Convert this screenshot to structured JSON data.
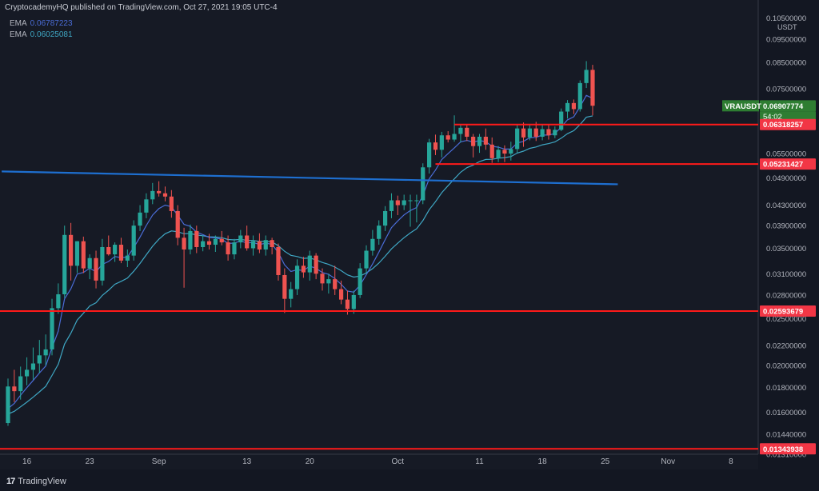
{
  "header": {
    "publish_text": "CryptocademyHQ published on TradingView.com, Oct 27, 2021 19:05 UTC-4"
  },
  "indicators": [
    {
      "label": "EMA",
      "value": "0.06787223",
      "color": "#4a6cd6"
    },
    {
      "label": "EMA",
      "value": "0.06025081",
      "color": "#3fa7c4"
    }
  ],
  "symbol": "VRAUSDT",
  "last_price": "0.06907774",
  "countdown": "54:02",
  "currency": "USDT",
  "footer": {
    "brand": "TradingView"
  },
  "chart_data": {
    "type": "candlestick",
    "y_axis": {
      "scale": "log",
      "range": [
        0.0131,
        0.1085
      ],
      "tick_labels": [
        "0.10500000",
        "0.09500000",
        "0.08500000",
        "0.07500000",
        "0.05500000",
        "0.04900000",
        "0.04300000",
        "0.03900000",
        "0.03500000",
        "0.03100000",
        "0.02800000",
        "0.02500000",
        "0.02200000",
        "0.02000000",
        "0.01800000",
        "0.01600000",
        "0.01440000",
        "0.01310000"
      ]
    },
    "x_axis": {
      "tick_labels": [
        "16",
        "23",
        "Sep",
        "13",
        "20",
        "Oct",
        "11",
        "18",
        "25",
        "Nov",
        "8"
      ]
    },
    "price_labels": [
      {
        "value": "0.06907774",
        "color": "#2e7d32"
      },
      {
        "value": "0.06318257",
        "color": "#f23645"
      },
      {
        "value": "0.05231427",
        "color": "#f23645"
      },
      {
        "value": "0.02593679",
        "color": "#f23645"
      },
      {
        "value": "0.01343938",
        "color": "#f23645"
      }
    ],
    "horizontal_levels": [
      {
        "value": 0.06318257,
        "color": "#ff1a1a"
      },
      {
        "value": 0.05231427,
        "color": "#ff1a1a"
      },
      {
        "value": 0.02593679,
        "color": "#ff1a1a"
      },
      {
        "value": 0.01343938,
        "color": "#ff1a1a"
      }
    ],
    "trendline": {
      "color": "#1e6fd0",
      "start": {
        "candle": -1,
        "price": 0.0505
      },
      "end": {
        "candle": 97,
        "price": 0.0475
      }
    },
    "candles": [
      {
        "o": 0.0152,
        "h": 0.0188,
        "l": 0.015,
        "c": 0.0181
      },
      {
        "o": 0.0181,
        "h": 0.0196,
        "l": 0.0168,
        "c": 0.0177
      },
      {
        "o": 0.0177,
        "h": 0.0199,
        "l": 0.017,
        "c": 0.019
      },
      {
        "o": 0.019,
        "h": 0.0208,
        "l": 0.0182,
        "c": 0.0196
      },
      {
        "o": 0.0196,
        "h": 0.0218,
        "l": 0.0187,
        "c": 0.0202
      },
      {
        "o": 0.0202,
        "h": 0.0226,
        "l": 0.0193,
        "c": 0.021
      },
      {
        "o": 0.021,
        "h": 0.0232,
        "l": 0.02,
        "c": 0.0216
      },
      {
        "o": 0.0216,
        "h": 0.0275,
        "l": 0.021,
        "c": 0.0263
      },
      {
        "o": 0.0263,
        "h": 0.0296,
        "l": 0.0256,
        "c": 0.0281
      },
      {
        "o": 0.0281,
        "h": 0.039,
        "l": 0.0276,
        "c": 0.0373
      },
      {
        "o": 0.0373,
        "h": 0.0395,
        "l": 0.03,
        "c": 0.0322
      },
      {
        "o": 0.0322,
        "h": 0.0362,
        "l": 0.0311,
        "c": 0.0362
      },
      {
        "o": 0.0362,
        "h": 0.037,
        "l": 0.0311,
        "c": 0.0318
      },
      {
        "o": 0.0318,
        "h": 0.034,
        "l": 0.0302,
        "c": 0.0334
      },
      {
        "o": 0.0334,
        "h": 0.0346,
        "l": 0.0289,
        "c": 0.03
      },
      {
        "o": 0.03,
        "h": 0.0366,
        "l": 0.0293,
        "c": 0.0352
      },
      {
        "o": 0.0352,
        "h": 0.0372,
        "l": 0.0338,
        "c": 0.034
      },
      {
        "o": 0.034,
        "h": 0.036,
        "l": 0.0328,
        "c": 0.0356
      },
      {
        "o": 0.0356,
        "h": 0.0368,
        "l": 0.0326,
        "c": 0.033
      },
      {
        "o": 0.033,
        "h": 0.0348,
        "l": 0.032,
        "c": 0.0338
      },
      {
        "o": 0.0338,
        "h": 0.04,
        "l": 0.033,
        "c": 0.039
      },
      {
        "o": 0.039,
        "h": 0.043,
        "l": 0.038,
        "c": 0.0415
      },
      {
        "o": 0.0415,
        "h": 0.0455,
        "l": 0.0404,
        "c": 0.0442
      },
      {
        "o": 0.0442,
        "h": 0.0478,
        "l": 0.0432,
        "c": 0.046
      },
      {
        "o": 0.046,
        "h": 0.0482,
        "l": 0.0448,
        "c": 0.0455
      },
      {
        "o": 0.0455,
        "h": 0.047,
        "l": 0.0438,
        "c": 0.0448
      },
      {
        "o": 0.0448,
        "h": 0.0462,
        "l": 0.0405,
        "c": 0.0418
      },
      {
        "o": 0.0418,
        "h": 0.043,
        "l": 0.0355,
        "c": 0.0368
      },
      {
        "o": 0.0368,
        "h": 0.0386,
        "l": 0.029,
        "c": 0.0348
      },
      {
        "o": 0.0348,
        "h": 0.0392,
        "l": 0.034,
        "c": 0.038
      },
      {
        "o": 0.038,
        "h": 0.039,
        "l": 0.0342,
        "c": 0.0352
      },
      {
        "o": 0.0352,
        "h": 0.0372,
        "l": 0.0345,
        "c": 0.0362
      },
      {
        "o": 0.0362,
        "h": 0.0375,
        "l": 0.0348,
        "c": 0.0356
      },
      {
        "o": 0.0356,
        "h": 0.0372,
        "l": 0.0344,
        "c": 0.0366
      },
      {
        "o": 0.0366,
        "h": 0.038,
        "l": 0.0355,
        "c": 0.036
      },
      {
        "o": 0.036,
        "h": 0.0372,
        "l": 0.033,
        "c": 0.034
      },
      {
        "o": 0.034,
        "h": 0.0366,
        "l": 0.0332,
        "c": 0.036
      },
      {
        "o": 0.036,
        "h": 0.0382,
        "l": 0.035,
        "c": 0.0372
      },
      {
        "o": 0.0372,
        "h": 0.039,
        "l": 0.0346,
        "c": 0.035
      },
      {
        "o": 0.035,
        "h": 0.0372,
        "l": 0.0338,
        "c": 0.0362
      },
      {
        "o": 0.0362,
        "h": 0.0376,
        "l": 0.0342,
        "c": 0.0348
      },
      {
        "o": 0.0348,
        "h": 0.0372,
        "l": 0.0338,
        "c": 0.0364
      },
      {
        "o": 0.0364,
        "h": 0.0368,
        "l": 0.034,
        "c": 0.0352
      },
      {
        "o": 0.0352,
        "h": 0.0358,
        "l": 0.03,
        "c": 0.0308
      },
      {
        "o": 0.0308,
        "h": 0.0318,
        "l": 0.0257,
        "c": 0.0275
      },
      {
        "o": 0.0275,
        "h": 0.0298,
        "l": 0.0264,
        "c": 0.0288
      },
      {
        "o": 0.0288,
        "h": 0.0332,
        "l": 0.028,
        "c": 0.0322
      },
      {
        "o": 0.0322,
        "h": 0.0336,
        "l": 0.0304,
        "c": 0.0312
      },
      {
        "o": 0.0312,
        "h": 0.0346,
        "l": 0.03,
        "c": 0.0338
      },
      {
        "o": 0.0338,
        "h": 0.0342,
        "l": 0.0302,
        "c": 0.031
      },
      {
        "o": 0.031,
        "h": 0.0318,
        "l": 0.0286,
        "c": 0.0296
      },
      {
        "o": 0.0296,
        "h": 0.031,
        "l": 0.0282,
        "c": 0.0302
      },
      {
        "o": 0.0302,
        "h": 0.0322,
        "l": 0.028,
        "c": 0.0288
      },
      {
        "o": 0.0288,
        "h": 0.03,
        "l": 0.0268,
        "c": 0.0274
      },
      {
        "o": 0.0274,
        "h": 0.0286,
        "l": 0.0255,
        "c": 0.0262
      },
      {
        "o": 0.0262,
        "h": 0.0286,
        "l": 0.0256,
        "c": 0.028
      },
      {
        "o": 0.028,
        "h": 0.0326,
        "l": 0.0276,
        "c": 0.0318
      },
      {
        "o": 0.0318,
        "h": 0.0355,
        "l": 0.031,
        "c": 0.0346
      },
      {
        "o": 0.0346,
        "h": 0.0382,
        "l": 0.0338,
        "c": 0.0366
      },
      {
        "o": 0.0366,
        "h": 0.04,
        "l": 0.0356,
        "c": 0.039
      },
      {
        "o": 0.039,
        "h": 0.0428,
        "l": 0.038,
        "c": 0.0418
      },
      {
        "o": 0.0418,
        "h": 0.0455,
        "l": 0.0404,
        "c": 0.044
      },
      {
        "o": 0.044,
        "h": 0.045,
        "l": 0.041,
        "c": 0.043
      },
      {
        "o": 0.043,
        "h": 0.0452,
        "l": 0.042,
        "c": 0.044
      },
      {
        "o": 0.044,
        "h": 0.0452,
        "l": 0.0388,
        "c": 0.044
      },
      {
        "o": 0.044,
        "h": 0.0452,
        "l": 0.0396,
        "c": 0.044
      },
      {
        "o": 0.044,
        "h": 0.0525,
        "l": 0.0432,
        "c": 0.0515
      },
      {
        "o": 0.0515,
        "h": 0.059,
        "l": 0.05,
        "c": 0.058
      },
      {
        "o": 0.058,
        "h": 0.0602,
        "l": 0.0546,
        "c": 0.056
      },
      {
        "o": 0.056,
        "h": 0.061,
        "l": 0.054,
        "c": 0.06
      },
      {
        "o": 0.06,
        "h": 0.0612,
        "l": 0.058,
        "c": 0.0588
      },
      {
        "o": 0.0588,
        "h": 0.066,
        "l": 0.0582,
        "c": 0.0604
      },
      {
        "o": 0.0604,
        "h": 0.0632,
        "l": 0.058,
        "c": 0.0622
      },
      {
        "o": 0.0622,
        "h": 0.063,
        "l": 0.0584,
        "c": 0.0596
      },
      {
        "o": 0.0596,
        "h": 0.0604,
        "l": 0.054,
        "c": 0.057
      },
      {
        "o": 0.057,
        "h": 0.0604,
        "l": 0.0552,
        "c": 0.0596
      },
      {
        "o": 0.0596,
        "h": 0.062,
        "l": 0.056,
        "c": 0.0574
      },
      {
        "o": 0.0574,
        "h": 0.0594,
        "l": 0.0526,
        "c": 0.0538
      },
      {
        "o": 0.0538,
        "h": 0.057,
        "l": 0.0528,
        "c": 0.056
      },
      {
        "o": 0.056,
        "h": 0.0572,
        "l": 0.0528,
        "c": 0.055
      },
      {
        "o": 0.055,
        "h": 0.0582,
        "l": 0.0532,
        "c": 0.0562
      },
      {
        "o": 0.0562,
        "h": 0.063,
        "l": 0.0552,
        "c": 0.062
      },
      {
        "o": 0.062,
        "h": 0.0638,
        "l": 0.0568,
        "c": 0.0594
      },
      {
        "o": 0.0594,
        "h": 0.0632,
        "l": 0.0586,
        "c": 0.062
      },
      {
        "o": 0.062,
        "h": 0.064,
        "l": 0.0584,
        "c": 0.0596
      },
      {
        "o": 0.0596,
        "h": 0.0632,
        "l": 0.0586,
        "c": 0.0618
      },
      {
        "o": 0.0618,
        "h": 0.063,
        "l": 0.0588,
        "c": 0.06
      },
      {
        "o": 0.06,
        "h": 0.0626,
        "l": 0.0592,
        "c": 0.0616
      },
      {
        "o": 0.0616,
        "h": 0.0682,
        "l": 0.0612,
        "c": 0.0672
      },
      {
        "o": 0.0672,
        "h": 0.071,
        "l": 0.065,
        "c": 0.07
      },
      {
        "o": 0.07,
        "h": 0.0712,
        "l": 0.0664,
        "c": 0.068
      },
      {
        "o": 0.068,
        "h": 0.078,
        "l": 0.0672,
        "c": 0.077
      },
      {
        "o": 0.077,
        "h": 0.0855,
        "l": 0.0752,
        "c": 0.082
      },
      {
        "o": 0.082,
        "h": 0.084,
        "l": 0.066,
        "c": 0.0691
      }
    ]
  }
}
